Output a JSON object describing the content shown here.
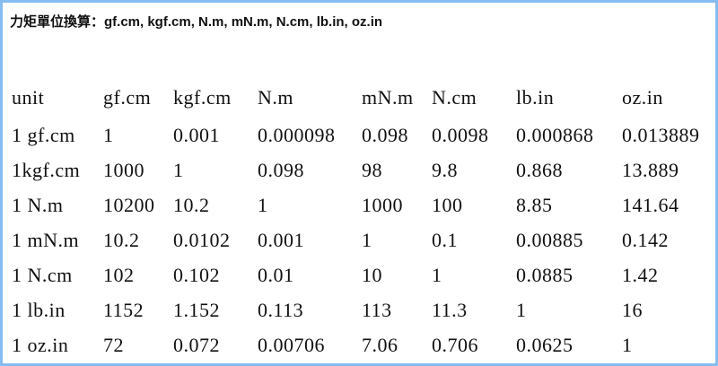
{
  "header": {
    "title": "力矩單位換算：gf.cm, kgf.cm, N.m, mN.m, N.cm, lb.in, oz.in"
  },
  "table": {
    "columns": [
      "unit",
      "gf.cm",
      "kgf.cm",
      "N.m",
      "mN.m",
      "N.cm",
      "lb.in",
      "oz.in"
    ],
    "rows": [
      [
        "1 gf.cm",
        "1",
        "0.001",
        "0.000098",
        "0.098",
        "0.0098",
        "0.000868",
        "0.013889"
      ],
      [
        "1kgf.cm",
        "1000",
        "1",
        "0.098",
        "98",
        "9.8",
        "0.868",
        "13.889"
      ],
      [
        "1 N.m",
        "10200",
        "10.2",
        "1",
        "1000",
        "100",
        "8.85",
        "141.64"
      ],
      [
        "1 mN.m",
        "10.2",
        "0.0102",
        "0.001",
        "1",
        "0.1",
        "0.00885",
        "0.142"
      ],
      [
        "1 N.cm",
        "102",
        "0.102",
        "0.01",
        "10",
        "1",
        "0.0885",
        "1.42"
      ],
      [
        "1 lb.in",
        "1152",
        "1.152",
        "0.113",
        "113",
        "11.3",
        "1",
        "16"
      ],
      [
        "1 oz.in",
        "72",
        "0.072",
        "0.00706",
        "7.06",
        "0.706",
        "0.0625",
        "1"
      ]
    ]
  }
}
